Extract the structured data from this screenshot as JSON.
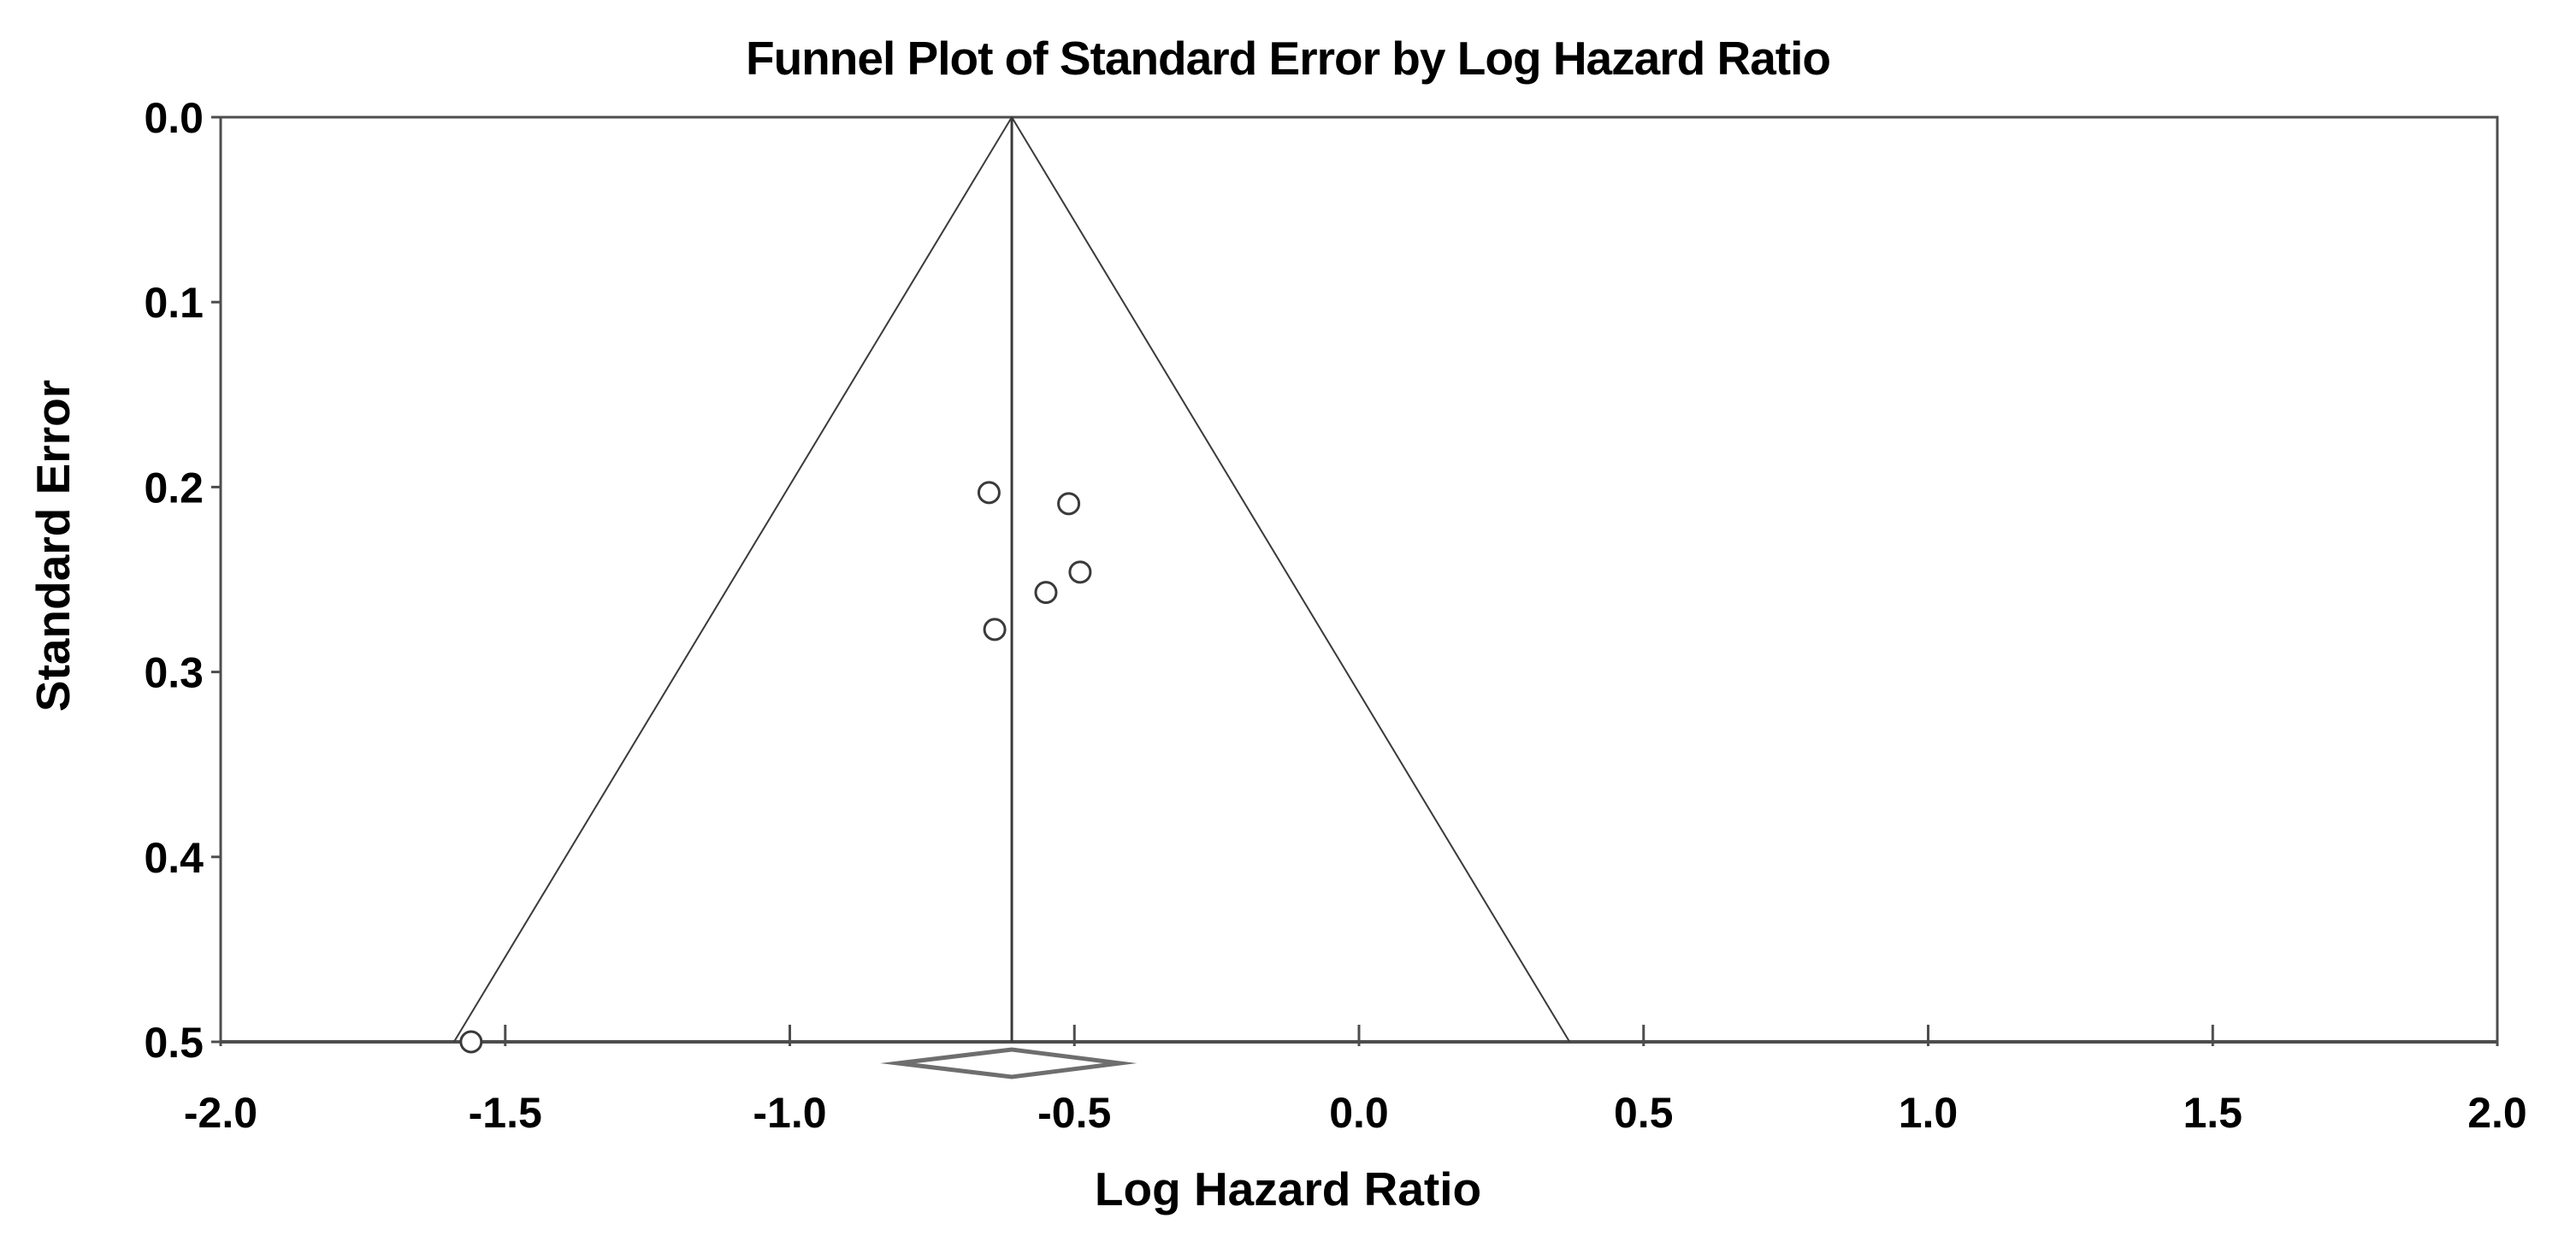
{
  "colors": {
    "background": "#ffffff",
    "axis": "#4d4d4d",
    "line": "#3a3a3a",
    "text": "#000000",
    "marker_fill": "#ffffff",
    "marker_stroke": "#3a3a3a",
    "diamond_stroke": "#6e6e6e"
  },
  "chart_data": {
    "type": "scatter",
    "subtype": "funnel-plot",
    "title": "Funnel Plot of Standard Error by Log Hazard Ratio",
    "xlabel": "Log Hazard Ratio",
    "ylabel": "Standard Error",
    "xlim": [
      -2.0,
      2.0
    ],
    "ylim": [
      0.0,
      0.5
    ],
    "y_axis_inverted": true,
    "grid": false,
    "legend": false,
    "x_ticks": [
      -2.0,
      -1.5,
      -1.0,
      -0.5,
      0.0,
      0.5,
      1.0,
      1.5,
      2.0
    ],
    "y_ticks": [
      0.0,
      0.1,
      0.2,
      0.3,
      0.4,
      0.5
    ],
    "points": [
      {
        "log_hr": -0.65,
        "se": 0.203
      },
      {
        "log_hr": -0.51,
        "se": 0.209
      },
      {
        "log_hr": -0.49,
        "se": 0.246
      },
      {
        "log_hr": -0.55,
        "se": 0.257
      },
      {
        "log_hr": -0.64,
        "se": 0.277
      },
      {
        "log_hr": -1.56,
        "se": 0.5
      }
    ],
    "funnel": {
      "center_log_hr": -0.61,
      "z": 1.96,
      "se_max": 0.5
    },
    "pooled_diamond": {
      "estimate_log_hr": -0.61,
      "ci_low": -0.81,
      "ci_high": -0.42
    }
  }
}
